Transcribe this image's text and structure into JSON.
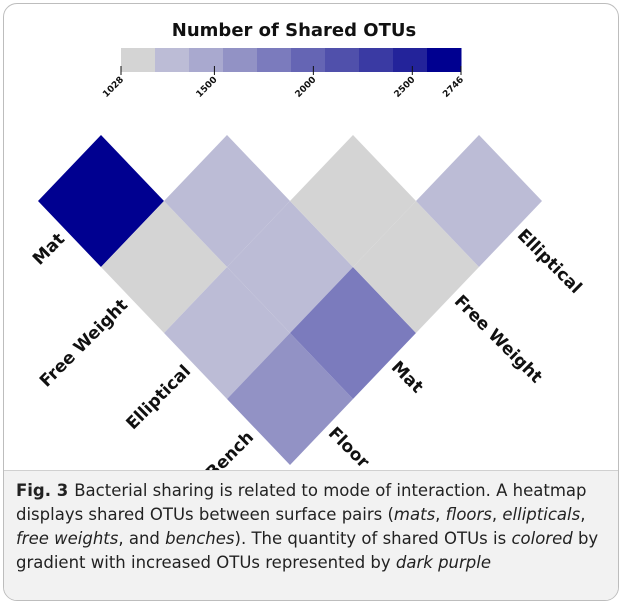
{
  "chart_data": {
    "type": "heatmap",
    "title": "Number of Shared OTUs",
    "row_labels": [
      "Mat",
      "Free Weight",
      "Elliptical",
      "Bench"
    ],
    "col_labels": [
      "Floor",
      "Mat",
      "Free Weight",
      "Elliptical"
    ],
    "values": [
      [
        2746
      ],
      [
        1028,
        1290
      ],
      [
        1320,
        1310,
        1060
      ],
      [
        1620,
        1830,
        1110,
        1280
      ]
    ],
    "colorbar": {
      "lim": [
        1028,
        2746
      ],
      "ticks": [
        1028,
        1500,
        2000,
        2500,
        2746
      ],
      "colors": [
        "#d4d4d4",
        "#bcbcd6",
        "#a9a9cf",
        "#9292c5",
        "#7b7bbd",
        "#6565b4",
        "#5050ab",
        "#3a3aa3",
        "#23239a",
        "#000090"
      ]
    }
  },
  "caption": {
    "label": "Fig. 3",
    "segments": [
      {
        "text": "Bacterial sharing is related to mode of interaction. A heatmap displays shared OTUs between surface pairs (",
        "italic": false
      },
      {
        "text": "mats",
        "italic": true
      },
      {
        "text": ", ",
        "italic": false
      },
      {
        "text": "floors",
        "italic": true
      },
      {
        "text": ", ",
        "italic": false
      },
      {
        "text": "ellipticals",
        "italic": true
      },
      {
        "text": ", ",
        "italic": false
      },
      {
        "text": "free weights",
        "italic": true
      },
      {
        "text": ", and ",
        "italic": false
      },
      {
        "text": "benches",
        "italic": true
      },
      {
        "text": "). The quantity of shared OTUs is ",
        "italic": false
      },
      {
        "text": "colored",
        "italic": true
      },
      {
        "text": " by gradient with increased OTUs represented by ",
        "italic": false
      },
      {
        "text": "dark purple",
        "italic": true
      }
    ]
  }
}
